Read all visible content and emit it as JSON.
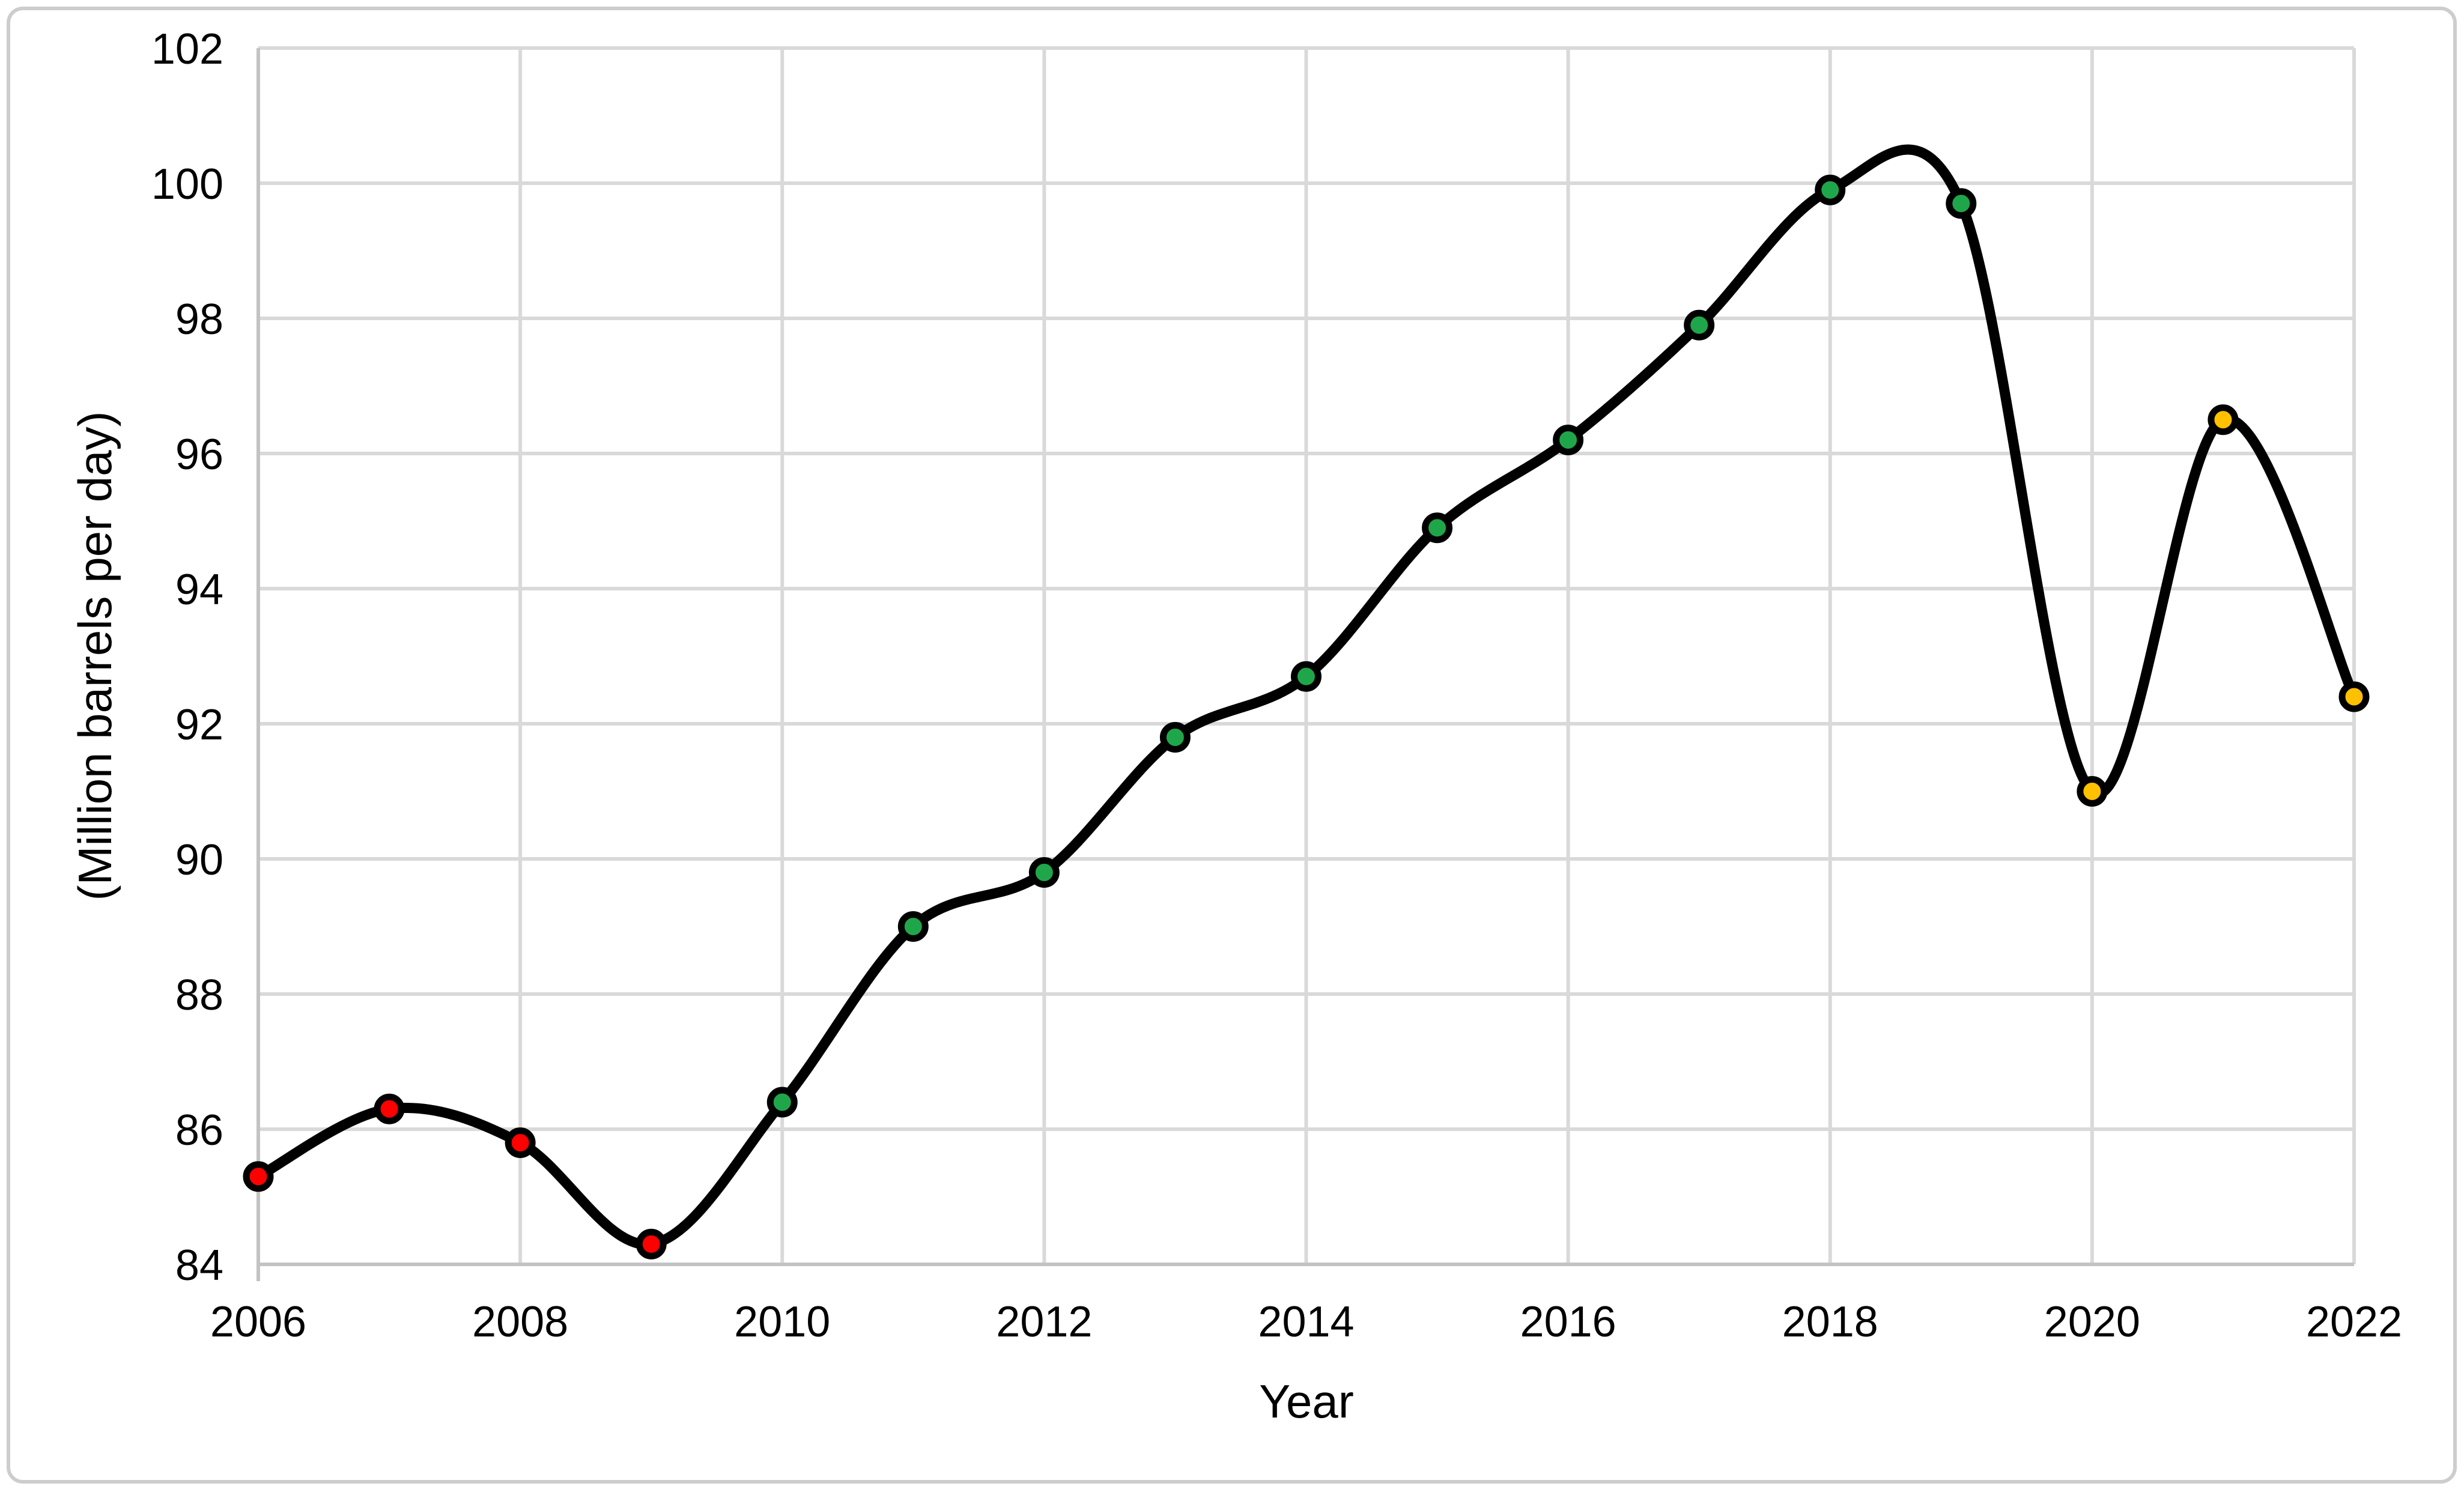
{
  "chart": {
    "background": "#FFFFFF",
    "frame_color": "#CDCDCD",
    "grid_color": "#D9D9D9",
    "axis_line_color": "#C3C3C3",
    "text_color": "#000000",
    "line_color": "#000000",
    "marker_stroke_color": "#000000"
  },
  "chart_data": {
    "type": "line",
    "title": "",
    "xlabel": "Year",
    "ylabel": "(Million barrels per day)",
    "x": [
      2006,
      2007,
      2008,
      2009,
      2010,
      2011,
      2012,
      2013,
      2014,
      2015,
      2016,
      2017,
      2018,
      2019,
      2020,
      2021,
      2022
    ],
    "series": [
      {
        "name": "",
        "values": [
          85.3,
          86.3,
          85.8,
          84.3,
          86.4,
          89.0,
          89.8,
          91.8,
          92.7,
          94.9,
          96.2,
          97.9,
          99.9,
          99.7,
          91.0,
          96.5,
          92.4
        ],
        "point_colors": [
          "#FF0000",
          "#FF0000",
          "#FF0000",
          "#FF0000",
          "#20A64A",
          "#20A64A",
          "#20A64A",
          "#20A64A",
          "#20A64A",
          "#20A64A",
          "#20A64A",
          "#20A64A",
          "#20A64A",
          "#20A64A",
          "#FFC000",
          "#FFC000",
          "#FFC000"
        ],
        "line_color": "#000000",
        "smooth": true
      }
    ],
    "ylim": [
      84,
      102
    ],
    "yticks": [
      84,
      86,
      88,
      90,
      92,
      94,
      96,
      98,
      100,
      102
    ],
    "xticks": [
      2006,
      2008,
      2010,
      2012,
      2014,
      2016,
      2018,
      2020,
      2022
    ],
    "grid": true,
    "legend": false
  }
}
